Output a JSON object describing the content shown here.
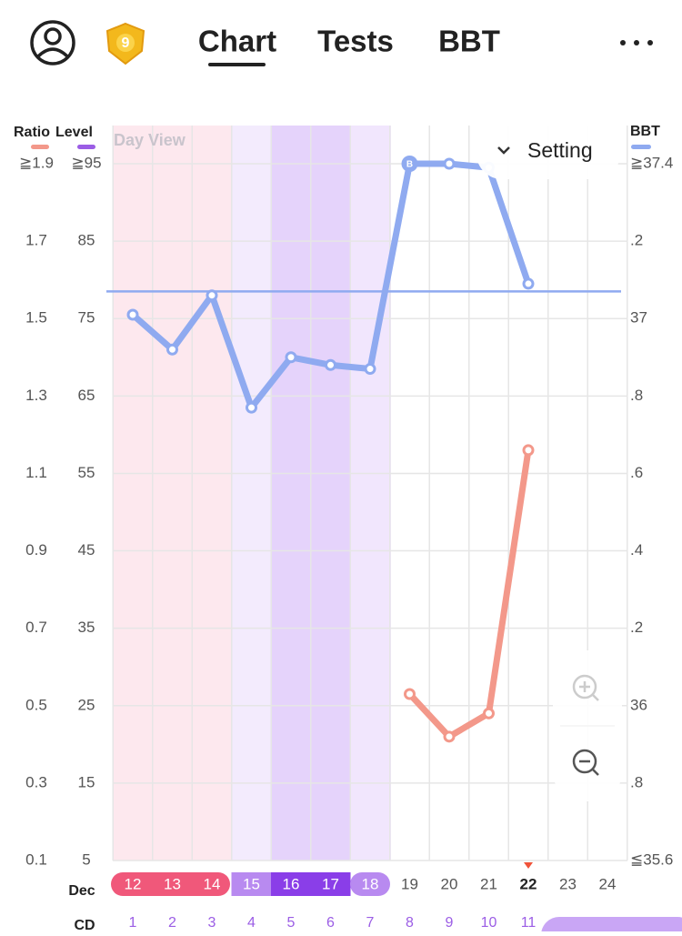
{
  "header": {
    "tabs": [
      "Chart",
      "Tests",
      "BBT"
    ],
    "badge": "9"
  },
  "view_label": "Day View",
  "setting": "Setting",
  "chart_data": {
    "type": "line",
    "month": "Dec",
    "cd_label": "CD",
    "categories": [
      "12",
      "13",
      "14",
      "15",
      "16",
      "17",
      "18",
      "19",
      "20",
      "21",
      "22",
      "23",
      "24"
    ],
    "cycle_days": [
      1,
      2,
      3,
      4,
      5,
      6,
      7,
      8,
      9,
      10,
      11
    ],
    "today": "22",
    "y_label": "Ratio",
    "y3_label": "Level",
    "y2_label": "BBT",
    "ylim": [
      0.1,
      1.9
    ],
    "yticks": [
      {
        "value": 1.9,
        "label": "≧1.9"
      },
      1.7,
      1.5,
      1.3,
      1.1,
      0.9,
      0.7,
      0.5,
      0.3,
      0.1
    ],
    "y3lim": [
      5,
      95
    ],
    "y3ticks": [
      {
        "value": 95,
        "label": "≧95"
      },
      85,
      75,
      65,
      55,
      45,
      35,
      25,
      15,
      5
    ],
    "y2lim": [
      35.6,
      37.4
    ],
    "y2ticks": [
      {
        "value": 37.4,
        "label": "≧37.4"
      },
      {
        "value": 37.2,
        "label": ".2"
      },
      37,
      {
        "value": 36.8,
        "label": ".8"
      },
      {
        "value": 36.6,
        "label": ".6"
      },
      {
        "value": 36.4,
        "label": ".4"
      },
      {
        "value": 36.2,
        "label": ".2"
      },
      36,
      {
        "value": 35.8,
        "label": ".8"
      },
      {
        "value": 35.6,
        "label": "≦35.6"
      }
    ],
    "cover_line": 37.07,
    "marker_label": "B",
    "series": [
      {
        "name": "Ratio",
        "color": "#f3988a",
        "values": [
          null,
          null,
          null,
          null,
          null,
          null,
          null,
          0.53,
          0.42,
          0.48,
          1.16,
          null,
          null
        ]
      },
      {
        "name": "Level",
        "color": "#9b5de5",
        "values": [
          null,
          null,
          null,
          null,
          null,
          null,
          null,
          null,
          null,
          null,
          null,
          null,
          null
        ]
      },
      {
        "name": "BBT",
        "color": "#8faaf0",
        "axis": "y2",
        "values": [
          37.01,
          36.92,
          37.06,
          36.77,
          36.9,
          36.88,
          36.87,
          37.4,
          37.4,
          37.39,
          37.09,
          null,
          null
        ]
      }
    ]
  }
}
